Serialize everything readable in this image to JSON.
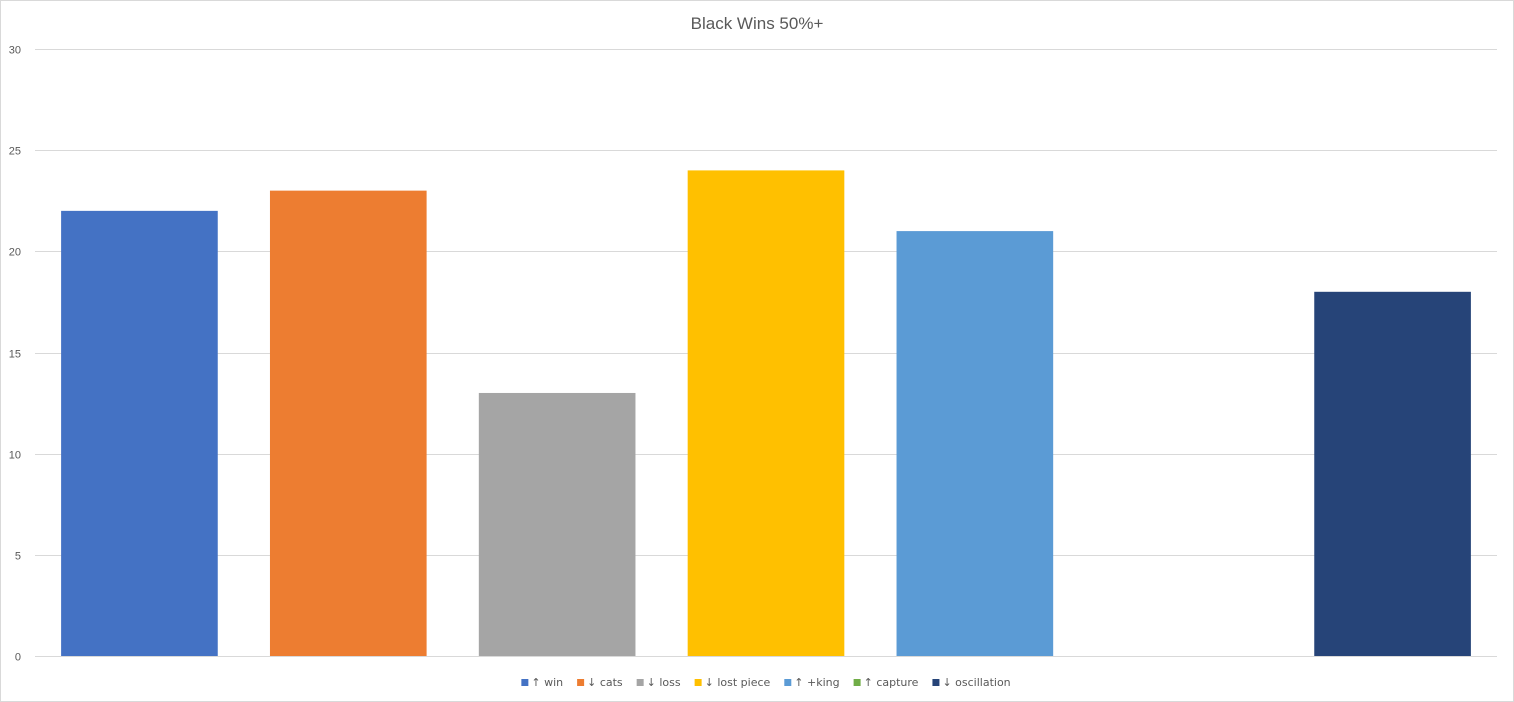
{
  "chart_data": {
    "type": "bar",
    "title": "Black Wins 50%+",
    "xlabel": "",
    "ylabel": "",
    "ylim": [
      0,
      30
    ],
    "yticks": [
      0,
      5,
      10,
      15,
      20,
      25,
      30
    ],
    "grid": true,
    "legend_position": "bottom",
    "series": [
      {
        "name": "↑ win",
        "value": 22,
        "color": "#4472c4"
      },
      {
        "name": "↓ cats",
        "value": 23,
        "color": "#ed7d31"
      },
      {
        "name": "↓ loss",
        "value": 13,
        "color": "#a5a5a5"
      },
      {
        "name": "↓ lost piece",
        "value": 24,
        "color": "#ffc000"
      },
      {
        "name": "↑ +king",
        "value": 21,
        "color": "#5b9bd5"
      },
      {
        "name": "↑ capture",
        "value": 0,
        "color": "#70ad47"
      },
      {
        "name": "↓ oscillation",
        "value": 18,
        "color": "#264478"
      }
    ]
  }
}
